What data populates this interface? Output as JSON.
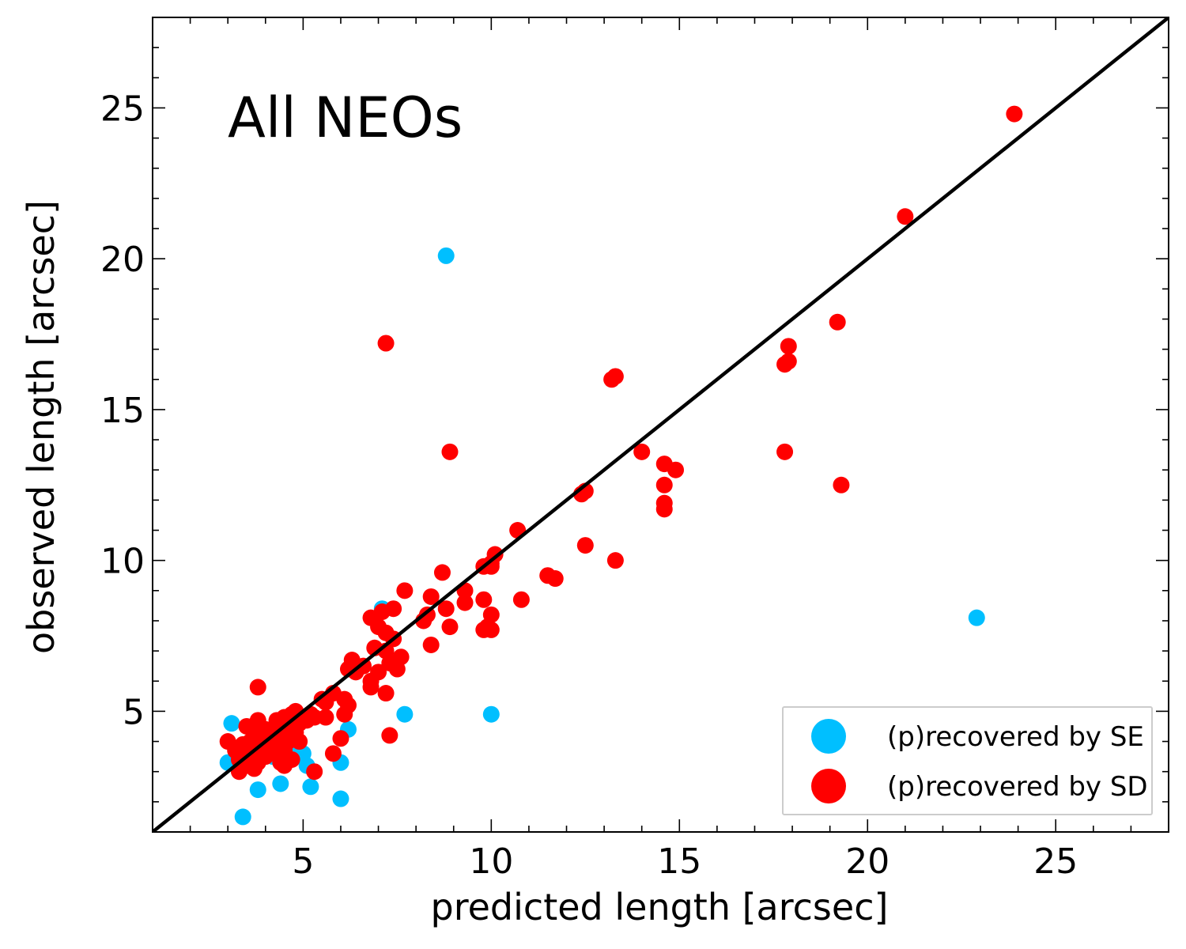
{
  "chart_data": {
    "type": "scatter",
    "title": "All NEOs",
    "xlabel": "predicted length [arcsec]",
    "ylabel": "observed length [arcsec]",
    "xlim": [
      1,
      28
    ],
    "ylim": [
      1,
      28
    ],
    "xticks": [
      5,
      10,
      15,
      20,
      25
    ],
    "yticks": [
      5,
      10,
      15,
      20,
      25
    ],
    "xtick_labels": [
      "5",
      "10",
      "15",
      "20",
      "25"
    ],
    "ytick_labels": [
      "5",
      "10",
      "15",
      "20",
      "25"
    ],
    "minor_tick_step": 1,
    "grid": false,
    "legend_position": "lower-right",
    "reference_line": {
      "label": "y = x",
      "color": "#000000"
    },
    "series": [
      {
        "name": "(p)recovered by SE",
        "color": "#00bfff",
        "points": [
          [
            8.8,
            20.1
          ],
          [
            22.9,
            8.1
          ],
          [
            10.0,
            4.9
          ],
          [
            7.7,
            4.9
          ],
          [
            3.1,
            4.6
          ],
          [
            3.0,
            3.3
          ],
          [
            3.4,
            1.5
          ],
          [
            3.8,
            2.4
          ],
          [
            4.4,
            2.6
          ],
          [
            5.2,
            2.5
          ],
          [
            6.0,
            2.1
          ],
          [
            6.0,
            3.3
          ],
          [
            6.2,
            4.4
          ],
          [
            5.0,
            3.6
          ],
          [
            5.1,
            3.2
          ],
          [
            4.8,
            3.8
          ],
          [
            4.2,
            3.5
          ],
          [
            3.6,
            3.3
          ],
          [
            3.9,
            3.9
          ],
          [
            4.6,
            4.2
          ],
          [
            7.1,
            8.4
          ]
        ]
      },
      {
        "name": "(p)recovered by SD",
        "color": "#ff0000",
        "points": [
          [
            23.9,
            24.8
          ],
          [
            21.0,
            21.4
          ],
          [
            19.2,
            17.9
          ],
          [
            19.3,
            12.5
          ],
          [
            17.9,
            17.1
          ],
          [
            17.8,
            16.5
          ],
          [
            17.9,
            16.6
          ],
          [
            17.8,
            13.6
          ],
          [
            14.0,
            13.6
          ],
          [
            14.6,
            13.2
          ],
          [
            14.9,
            13.0
          ],
          [
            14.6,
            12.5
          ],
          [
            14.6,
            11.9
          ],
          [
            14.6,
            11.7
          ],
          [
            13.2,
            16.0
          ],
          [
            13.3,
            16.1
          ],
          [
            12.4,
            12.2
          ],
          [
            12.5,
            12.3
          ],
          [
            12.5,
            10.5
          ],
          [
            13.3,
            10.0
          ],
          [
            7.2,
            17.2
          ],
          [
            8.9,
            13.6
          ],
          [
            10.7,
            11.0
          ],
          [
            10.0,
            9.8
          ],
          [
            10.1,
            10.2
          ],
          [
            9.8,
            9.8
          ],
          [
            10.0,
            9.9
          ],
          [
            11.5,
            9.5
          ],
          [
            11.7,
            9.4
          ],
          [
            10.8,
            8.7
          ],
          [
            10.0,
            8.2
          ],
          [
            9.8,
            8.7
          ],
          [
            9.8,
            7.7
          ],
          [
            10.0,
            7.7
          ],
          [
            9.9,
            7.8
          ],
          [
            9.3,
            8.6
          ],
          [
            9.3,
            9.0
          ],
          [
            8.7,
            9.6
          ],
          [
            8.4,
            8.8
          ],
          [
            8.8,
            8.4
          ],
          [
            8.9,
            7.8
          ],
          [
            8.3,
            8.2
          ],
          [
            8.2,
            8.0
          ],
          [
            8.4,
            7.2
          ],
          [
            7.7,
            9.0
          ],
          [
            7.4,
            8.4
          ],
          [
            7.1,
            8.3
          ],
          [
            6.8,
            8.1
          ],
          [
            7.2,
            7.6
          ],
          [
            7.0,
            7.8
          ],
          [
            7.4,
            7.4
          ],
          [
            7.2,
            7.0
          ],
          [
            6.9,
            7.1
          ],
          [
            7.6,
            6.8
          ],
          [
            7.3,
            6.6
          ],
          [
            7.5,
            6.4
          ],
          [
            7.0,
            6.3
          ],
          [
            6.6,
            6.5
          ],
          [
            6.8,
            6.0
          ],
          [
            6.4,
            6.3
          ],
          [
            6.2,
            6.4
          ],
          [
            6.8,
            5.8
          ],
          [
            7.2,
            5.6
          ],
          [
            7.3,
            4.2
          ],
          [
            6.3,
            6.7
          ],
          [
            5.8,
            5.6
          ],
          [
            5.6,
            5.3
          ],
          [
            5.5,
            5.4
          ],
          [
            6.1,
            5.4
          ],
          [
            6.2,
            5.2
          ],
          [
            6.1,
            4.9
          ],
          [
            6.0,
            4.1
          ],
          [
            5.8,
            3.6
          ],
          [
            5.3,
            3.0
          ],
          [
            5.6,
            4.8
          ],
          [
            5.2,
            4.9
          ],
          [
            5.3,
            4.8
          ],
          [
            5.0,
            4.8
          ],
          [
            4.8,
            5.0
          ],
          [
            4.7,
            4.9
          ],
          [
            4.5,
            4.8
          ],
          [
            4.3,
            4.7
          ],
          [
            4.6,
            4.5
          ],
          [
            4.3,
            4.4
          ],
          [
            4.0,
            4.4
          ],
          [
            3.8,
            4.7
          ],
          [
            3.5,
            4.5
          ],
          [
            3.7,
            4.3
          ],
          [
            3.9,
            4.1
          ],
          [
            4.1,
            4.2
          ],
          [
            4.4,
            4.2
          ],
          [
            4.6,
            4.0
          ],
          [
            4.8,
            4.3
          ],
          [
            4.9,
            4.6
          ],
          [
            4.2,
            3.9
          ],
          [
            4.0,
            3.8
          ],
          [
            3.6,
            4.0
          ],
          [
            3.4,
            3.9
          ],
          [
            3.2,
            3.7
          ],
          [
            3.0,
            4.0
          ],
          [
            3.3,
            3.4
          ],
          [
            3.5,
            3.2
          ],
          [
            3.3,
            3.0
          ],
          [
            3.7,
            3.1
          ],
          [
            3.8,
            3.3
          ],
          [
            4.0,
            3.5
          ],
          [
            4.2,
            3.7
          ],
          [
            4.5,
            3.7
          ],
          [
            4.4,
            3.3
          ],
          [
            4.5,
            3.2
          ],
          [
            4.7,
            3.4
          ],
          [
            3.8,
            5.8
          ],
          [
            4.1,
            3.6
          ],
          [
            3.6,
            3.6
          ],
          [
            4.9,
            4.0
          ],
          [
            5.1,
            4.7
          ]
        ]
      }
    ]
  }
}
